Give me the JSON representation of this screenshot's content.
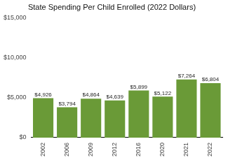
{
  "chart_data": {
    "type": "bar",
    "title": "State Spending Per Child Enrolled (2022 Dollars)",
    "categories": [
      "2002",
      "2006",
      "2009",
      "2012",
      "2016",
      "2020",
      "2021",
      "2022"
    ],
    "values": [
      4926,
      3794,
      4864,
      4639,
      5899,
      5122,
      7264,
      6804
    ],
    "value_labels": [
      "$4,926",
      "$3,794",
      "$4,864",
      "$4,639",
      "$5,899",
      "$5,122",
      "$7,264",
      "$6,804"
    ],
    "color": "#6a9a37",
    "ylim": [
      0,
      15000
    ],
    "yticks": [
      {
        "value": 0,
        "label": "$0"
      },
      {
        "value": 5000,
        "label": "$5,000"
      },
      {
        "value": 10000,
        "label": "$10,000"
      },
      {
        "value": 15000,
        "label": "$15,000"
      }
    ],
    "grid": false,
    "data_labels": true
  }
}
